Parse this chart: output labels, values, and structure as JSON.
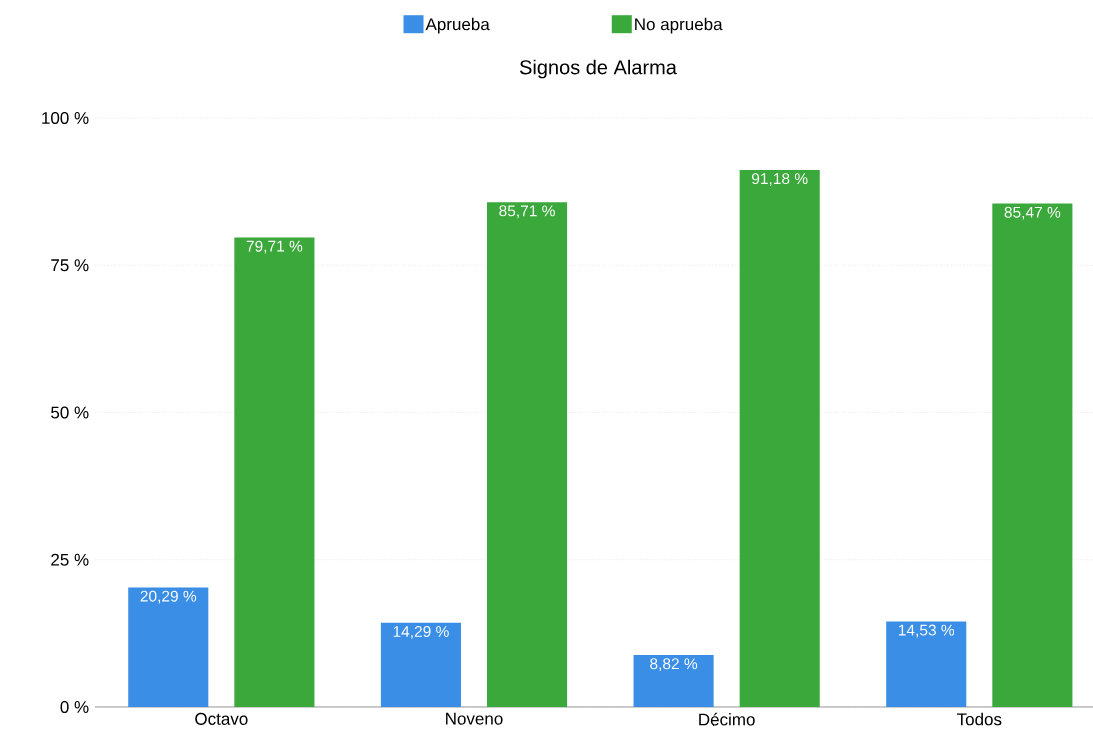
{
  "chart_data": {
    "type": "bar",
    "title": "Signos de Alarma",
    "categories": [
      "Octavo",
      "Noveno",
      "Décimo",
      "Todos"
    ],
    "series": [
      {
        "name": "Aprueba",
        "color": "#3a8ee6",
        "values": [
          20.29,
          14.29,
          8.82,
          14.53
        ],
        "value_labels": [
          "20,29 %",
          "14,29 %",
          "8,82 %",
          "14,53 %"
        ]
      },
      {
        "name": "No aprueba",
        "color": "#3aa83a",
        "values": [
          79.71,
          85.71,
          91.18,
          85.47
        ],
        "value_labels": [
          "79,71 %",
          "85,71 %",
          "91,18 %",
          "85,47 %"
        ]
      }
    ],
    "ylim": [
      0,
      100
    ],
    "yticks": [
      {
        "value": 0,
        "label": "0 %"
      },
      {
        "value": 25,
        "label": "25 %"
      },
      {
        "value": 50,
        "label": "50 %"
      },
      {
        "value": 75,
        "label": "75 %"
      },
      {
        "value": 100,
        "label": "100 %"
      }
    ],
    "grid": "y",
    "legend": "top"
  }
}
